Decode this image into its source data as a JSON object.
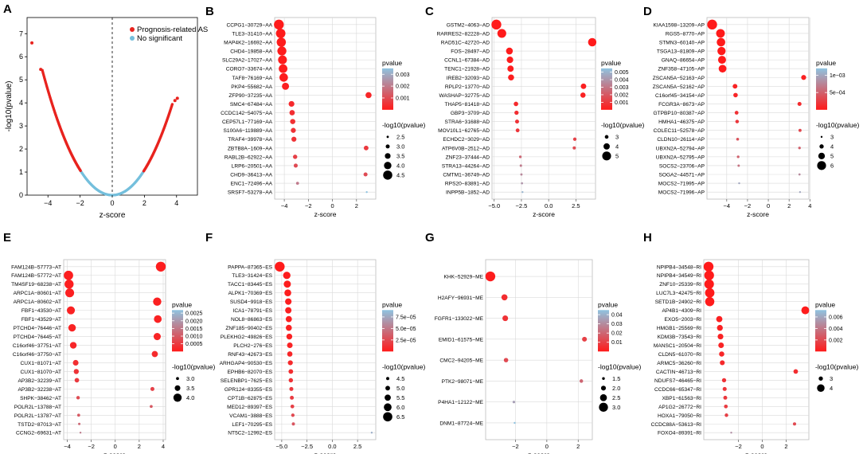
{
  "colors": {
    "sig": "#e8231e",
    "nonsig": "#74bfdc",
    "grad_low": "#ff1a1a",
    "grad_high": "#8fc3e0",
    "panel_bg": "#ffffff",
    "grid": "#d9d9d9"
  },
  "chart_data": [
    {
      "letter": "A",
      "type": "scatter",
      "xlabel": "z-score",
      "ylabel": "-log10(pvalue)",
      "xlim": [
        -5.3,
        5.3
      ],
      "ylim": [
        0,
        7.7
      ],
      "xticks": [
        -4,
        -2,
        0,
        2,
        4
      ],
      "yticks": [
        0,
        1,
        2,
        3,
        4,
        5,
        6,
        7
      ],
      "legend": [
        {
          "label": "Prognosis-related AS",
          "color": "#e8231e"
        },
        {
          "label": "No significant",
          "color": "#74bfdc"
        }
      ],
      "outliers": [
        {
          "x": -5.0,
          "y": 6.6
        },
        {
          "x": -4.45,
          "y": 5.45
        },
        {
          "x": 3.9,
          "y": 4.1
        },
        {
          "x": 4.05,
          "y": 4.2
        }
      ]
    },
    {
      "letter": "B",
      "type": "dot",
      "ylabels": [
        "CCPG1−30729−AA",
        "TLE3−31410−AA",
        "MAP4K2−16692−AA",
        "CHD4−19858−AA",
        "SLC29A2−17027−AA",
        "CORO7−33674−AA",
        "TAF8−76169−AA",
        "PKP4−55682−AA",
        "ZFP90−37235−AA",
        "SMC4−67484−AA",
        "CCDC142−54075−AA",
        "CEP57L1−77169−AA",
        "S100A6−119889−AA",
        "TRAF4−39978−AA",
        "ZBTB8A−1609−AA",
        "RABL2B−62922−AA",
        "LRP6−20501−AA",
        "CHD9−36413−AA",
        "ENC1−72496−AA",
        "SRSF7−53278−AA"
      ],
      "x": [
        -4.45,
        -4.3,
        -4.25,
        -4.2,
        -4.15,
        -4.1,
        -4.05,
        -3.9,
        3.0,
        -3.4,
        -3.35,
        -3.3,
        -3.25,
        -3.2,
        2.8,
        -3.1,
        -3.05,
        2.75,
        -2.9,
        2.85
      ],
      "size": [
        4.7,
        4.6,
        4.5,
        4.45,
        4.4,
        4.35,
        4.3,
        3.9,
        3.6,
        3.5,
        3.4,
        3.35,
        3.3,
        3.3,
        3.2,
        3.1,
        3.0,
        3.0,
        2.7,
        2.4
      ],
      "xlim": [
        -4.8,
        3.6
      ],
      "xticks": [
        -4,
        -2,
        0,
        2
      ],
      "xlabel": "z-score",
      "color_legend": {
        "title": "pvalue",
        "min": 0.0,
        "max": 0.0035,
        "ticks": [
          0.001,
          0.002,
          0.003
        ],
        "tick_labels": [
          "0.001",
          "0.002",
          "0.003"
        ]
      },
      "size_legend": {
        "title": "-log10(pvalue)",
        "values": [
          2.5,
          3.0,
          3.5,
          4.0,
          4.5
        ],
        "labels": [
          "2.5",
          "3.0",
          "3.5",
          "4.0",
          "4.5"
        ]
      },
      "smin": 2.4,
      "smax": 4.7
    },
    {
      "letter": "C",
      "type": "dot",
      "ylabels": [
        "GSTM2−4063−AD",
        "RARRES2−82228−AD",
        "RAD51C−42720−AD",
        "FOS−28497−AD",
        "CCNL1−67384−AD",
        "TENC1−21928−AD",
        "IREB2−32093−AD",
        "RPLP2−13770−AD",
        "WASHAP−32775−AD",
        "THAP5−81418−AD",
        "GBP3−3709−AD",
        "STRA6−31688−AD",
        "MOV10L1−62765−AD",
        "ECHDC2−3029−AD",
        "ATP6V0B−2512−AD",
        "ZNF23−37444−AD",
        "STRA13−44264−AD",
        "CMTM1−36749−AD",
        "RPS20−83891−AD",
        "INPP5B−1852−AD"
      ],
      "x": [
        -4.8,
        -4.3,
        4.0,
        -3.6,
        -3.55,
        -3.5,
        -3.45,
        3.2,
        3.15,
        -3.0,
        -2.95,
        -2.9,
        -2.85,
        2.4,
        2.35,
        -2.6,
        -2.55,
        -2.5,
        -2.45,
        -2.4
      ],
      "size": [
        5.4,
        5.0,
        4.8,
        4.2,
        4.1,
        4.0,
        3.9,
        3.7,
        3.6,
        3.3,
        3.2,
        3.1,
        3.05,
        2.9,
        2.8,
        2.6,
        2.5,
        2.45,
        2.4,
        2.3
      ],
      "xlim": [
        -5.2,
        4.3
      ],
      "xticks": [
        -5.0,
        -2.5,
        0.0,
        2.5
      ],
      "xtick_labels": [
        "−5.0",
        "−2.5",
        "0.0",
        "2.5"
      ],
      "xlabel": "z-score",
      "color_legend": {
        "title": "pvalue",
        "min": 0.0,
        "max": 0.0055,
        "ticks": [
          0.001,
          0.002,
          0.003,
          0.004,
          0.005
        ],
        "tick_labels": [
          "0.001",
          "0.002",
          "0.003",
          "0.004",
          "0.005"
        ]
      },
      "size_legend": {
        "title": "-log10(pvalue)",
        "values": [
          3,
          4,
          5
        ],
        "labels": [
          "3",
          "4",
          "5"
        ]
      },
      "smin": 2.3,
      "smax": 5.4
    },
    {
      "letter": "D",
      "type": "dot",
      "ylabels": [
        "KIAA1598−13209−AP",
        "RGS5−8770−AP",
        "STMN3−60140−AP",
        "TSGA13−81809−AP",
        "GNAQ−86654−AP",
        "ZNF358−47105−AP",
        "ZSCAN5A−52163−AP",
        "ZSCAN5A−52162−AP",
        "C16orf45−34154−AP",
        "FCGR3A−8673−AP",
        "GTPBP10−80387−AP",
        "HMHA1−46375−AP",
        "COLEC11−52578−AP",
        "CLDN10−26114−AP",
        "UBXN2A−52794−AP",
        "UBXN2A−52795−AP",
        "SOCS2−23706−AP",
        "SOGA2−44571−AP",
        "MOCS2−71995−AP",
        "MOCS2−71996−AP"
      ],
      "x": [
        -5.4,
        -4.6,
        -4.55,
        -4.5,
        -4.45,
        -4.4,
        3.4,
        -3.2,
        -3.15,
        3.0,
        -3.05,
        -3.0,
        3.05,
        -2.95,
        3.0,
        -2.9,
        -2.85,
        3.0,
        -2.8,
        3.05
      ],
      "size": [
        6.4,
        5.9,
        5.8,
        5.7,
        5.6,
        5.5,
        4.3,
        4.2,
        4.1,
        3.9,
        3.8,
        3.7,
        3.5,
        3.4,
        3.3,
        3.3,
        3.2,
        3.1,
        3.0,
        3.0
      ],
      "xlim": [
        -5.9,
        3.9
      ],
      "xticks": [
        -4,
        -2,
        0,
        2,
        4
      ],
      "xlabel": "z-score",
      "color_legend": {
        "title": "pvalue",
        "min": 0.0,
        "max": 0.0012,
        "ticks": [
          0.0005,
          0.001
        ],
        "tick_labels": [
          "5e−04",
          "1e−03"
        ]
      },
      "size_legend": {
        "title": "-log10(pvalue)",
        "values": [
          3,
          4,
          5,
          6
        ],
        "labels": [
          "3",
          "4",
          "5",
          "6"
        ]
      },
      "smin": 3.0,
      "smax": 6.4
    },
    {
      "letter": "E",
      "type": "dot",
      "ylabels": [
        "FAM124B−57773−AT",
        "FAM124B−57772−AT",
        "TM4SF19−68238−AT",
        "ARPC1A−80601−AT",
        "ARPC1A−80602−AT",
        "FBF1−43530−AT",
        "FBF1−43529−AT",
        "PTCHD4−76446−AT",
        "PTCHD4−76445−AT",
        "C16orf46−37751−AT",
        "C16orf46−37750−AT",
        "CUX1−81071−AT",
        "CUX1−81070−AT",
        "AP3B2−32239−AT",
        "AP3B2−32238−AT",
        "SHPK−38462−AT",
        "POLR2L−13788−AT",
        "POLR2L−13787−AT",
        "TSTD2−87013−AT",
        "CCNG2−69631−AT"
      ],
      "x": [
        3.8,
        -3.9,
        -3.85,
        -3.8,
        3.5,
        -3.7,
        3.55,
        -3.6,
        3.5,
        -3.5,
        3.3,
        -3.3,
        -3.25,
        -3.2,
        3.1,
        -3.1,
        3.0,
        -3.05,
        -3.0,
        -2.9
      ],
      "size": [
        4.3,
        4.2,
        4.15,
        4.1,
        4.0,
        3.95,
        3.9,
        3.85,
        3.8,
        3.7,
        3.6,
        3.5,
        3.4,
        3.3,
        3.2,
        3.1,
        3.0,
        3.0,
        2.9,
        2.8
      ],
      "xlim": [
        -4.3,
        4.2
      ],
      "xticks": [
        -4,
        -2,
        0,
        2,
        4
      ],
      "xlabel": "z-score",
      "color_legend": {
        "title": "pvalue",
        "min": 0.0,
        "max": 0.0027,
        "ticks": [
          0.0005,
          0.001,
          0.0015,
          0.002,
          0.0025
        ],
        "tick_labels": [
          "0.0005",
          "0.0010",
          "0.0015",
          "0.0020",
          "0.0025"
        ]
      },
      "size_legend": {
        "title": "-log10(pvalue)",
        "values": [
          3.0,
          3.5,
          4.0
        ],
        "labels": [
          "3.0",
          "3.5",
          "4.0"
        ]
      },
      "smin": 2.8,
      "smax": 4.3
    },
    {
      "letter": "F",
      "type": "dot",
      "ylabels": [
        "PAPPA−87365−ES",
        "TLE3−31424−ES",
        "TACC1−83445−ES",
        "ALPK1−70369−ES",
        "SUSD4−9918−ES",
        "ICA1−78791−ES",
        "NOL8−86863−ES",
        "ZNF185−90402−ES",
        "PLEKHG2−49826−ES",
        "PLCH2−276−ES",
        "RNF43−42673−ES",
        "ARHGAP4−90530−ES",
        "EPHB6−82070−ES",
        "SELENBP1−7625−ES",
        "GPR124−83355−ES",
        "CPT1B−62875−ES",
        "MED12−89397−ES",
        "VCAM1−3888−ES",
        "LEF1−70295−ES",
        "NT5C2−12992−ES"
      ],
      "x": [
        -5.2,
        -4.5,
        -4.45,
        -4.4,
        -4.35,
        -4.35,
        -4.3,
        -4.3,
        -4.25,
        -4.2,
        -4.2,
        -4.15,
        -4.1,
        -4.1,
        -4.05,
        -4.0,
        -3.95,
        -3.9,
        -3.85,
        3.9
      ],
      "size": [
        6.7,
        5.9,
        5.8,
        5.7,
        5.6,
        5.55,
        5.5,
        5.45,
        5.4,
        5.3,
        5.2,
        5.1,
        5.0,
        4.9,
        4.8,
        4.75,
        4.7,
        4.6,
        4.5,
        4.1
      ],
      "xlim": [
        -5.7,
        4.3
      ],
      "xticks": [
        -5.0,
        -2.5,
        0.0,
        2.5
      ],
      "xtick_labels": [
        "−5.0",
        "−2.5",
        "0.0",
        "2.5"
      ],
      "xlabel": "z-score",
      "color_legend": {
        "title": "pvalue",
        "min": 0.0,
        "max": 9e-05,
        "ticks": [
          2.5e-05,
          5e-05,
          7.5e-05
        ],
        "tick_labels": [
          "2.5e−05",
          "5.0e−05",
          "7.5e−05"
        ]
      },
      "size_legend": {
        "title": "-log10(pvalue)",
        "values": [
          4.5,
          5.0,
          5.5,
          6.0,
          6.5
        ],
        "labels": [
          "4.5",
          "5.0",
          "5.5",
          "6.0",
          "6.5"
        ]
      },
      "smin": 4.1,
      "smax": 6.7
    },
    {
      "letter": "G",
      "type": "dot",
      "ylabels": [
        "KHK−52929−ME",
        "H2AFY−96931−ME",
        "FGFR1−133022−ME",
        "EMID1−61575−ME",
        "CMC2−94205−ME",
        "PTK2−98071−ME",
        "P4HA1−12122−ME",
        "DNM1−87724−ME"
      ],
      "x": [
        -3.6,
        -2.7,
        -2.65,
        2.4,
        -2.6,
        2.2,
        -2.1,
        -2.05
      ],
      "size": [
        3.2,
        2.3,
        2.2,
        2.0,
        1.9,
        1.7,
        1.45,
        1.3
      ],
      "xlim": [
        -3.9,
        2.9
      ],
      "xticks": [
        -2,
        0,
        2
      ],
      "xlabel": "z-score",
      "color_legend": {
        "title": "pvalue",
        "min": 0.0,
        "max": 0.045,
        "ticks": [
          0.01,
          0.02,
          0.03,
          0.04
        ],
        "tick_labels": [
          "0.01",
          "0.02",
          "0.03",
          "0.04"
        ]
      },
      "size_legend": {
        "title": "-log10(pvalue)",
        "values": [
          1.5,
          2.0,
          2.5,
          3.0
        ],
        "labels": [
          "1.5",
          "2.0",
          "2.5",
          "3.0"
        ]
      },
      "smin": 1.3,
      "smax": 3.2
    },
    {
      "letter": "H",
      "type": "dot",
      "ylabels": [
        "NPIPB4−34548−RI",
        "NPIPB4−34549−RI",
        "ZNF10−25339−RI",
        "LUC7L3−42475−RI",
        "SETD1B−24902−RI",
        "AP4B1−4309−RI",
        "EXO5−2003−RI",
        "HMGB1−25569−RI",
        "KDM3B−73543−RI",
        "MANSC1−20504−RI",
        "CLDN5−61070−RI",
        "ARMC5−36260−RI",
        "CACTIN−46713−RI",
        "NDUFS7−46465−RI",
        "CCDC66−65347−RI",
        "XBP1−61563−RI",
        "AP1G2−26772−RI",
        "HOXA1−79050−RI",
        "CCDC88A−53613−RI",
        "FOXO4−89391−RI"
      ],
      "x": [
        -4.5,
        -4.45,
        -4.45,
        -4.4,
        -4.4,
        3.6,
        -3.6,
        -3.55,
        -3.5,
        -3.45,
        -3.4,
        -3.35,
        2.8,
        -3.2,
        -3.15,
        -3.1,
        -3.05,
        -3.0,
        2.7,
        -2.6
      ],
      "size": [
        4.7,
        4.65,
        4.6,
        4.55,
        4.5,
        4.1,
        3.6,
        3.5,
        3.45,
        3.4,
        3.3,
        3.2,
        3.1,
        3.0,
        2.95,
        2.9,
        2.85,
        2.8,
        2.7,
        2.3
      ],
      "xlim": [
        -4.9,
        3.9
      ],
      "xticks": [
        -2,
        0,
        2
      ],
      "xlabel": "z-score",
      "color_legend": {
        "title": "pvalue",
        "min": 0.0,
        "max": 0.0072,
        "ticks": [
          0.002,
          0.004,
          0.006
        ],
        "tick_labels": [
          "0.002",
          "0.004",
          "0.006"
        ]
      },
      "size_legend": {
        "title": "-log10(pvalue)",
        "values": [
          3,
          4
        ],
        "labels": [
          "3",
          "4"
        ]
      },
      "smin": 2.3,
      "smax": 4.7
    }
  ]
}
